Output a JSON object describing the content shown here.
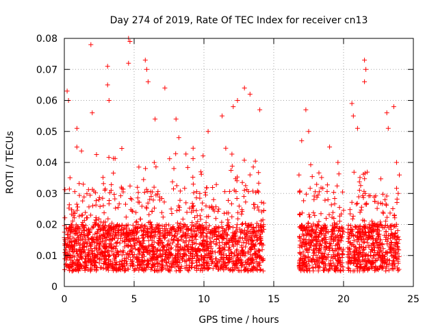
{
  "chart_data": {
    "type": "scatter",
    "title": "Day 274 of 2019, Rate Of TEC Index for receiver cn13",
    "xlabel": "GPS time / hours",
    "ylabel": "ROTI / TECUs",
    "xlim": [
      0,
      25
    ],
    "ylim": [
      0,
      0.08
    ],
    "xticks": [
      0,
      5,
      10,
      15,
      20,
      25
    ],
    "yticks": [
      0,
      0.01,
      0.02,
      0.03,
      0.04,
      0.05,
      0.06,
      0.07,
      0.08
    ],
    "xtick_labels": [
      "0",
      "5",
      "10",
      "15",
      "20",
      "25"
    ],
    "ytick_labels": [
      "0",
      "0.01",
      "0.02",
      "0.03",
      "0.04",
      "0.05",
      "0.06",
      "0.07",
      "0.08"
    ],
    "grid": true,
    "marker": "+",
    "series": [
      {
        "name": "cn13",
        "color": "#ff0000",
        "segments": [
          {
            "x_start": 0.0,
            "x_end": 14.3,
            "base": [
              0.005,
              0.02
            ],
            "spread_to": 0.045
          },
          {
            "x_start": 16.8,
            "x_end": 20.0,
            "base": [
              0.005,
              0.02
            ],
            "spread_to": 0.04
          },
          {
            "x_start": 20.3,
            "x_end": 24.0,
            "base": [
              0.005,
              0.02
            ],
            "spread_to": 0.04
          }
        ],
        "notable_points": [
          {
            "x": 0.2,
            "y": 0.063
          },
          {
            "x": 0.3,
            "y": 0.06
          },
          {
            "x": 0.9,
            "y": 0.051
          },
          {
            "x": 1.9,
            "y": 0.078
          },
          {
            "x": 2.0,
            "y": 0.056
          },
          {
            "x": 3.1,
            "y": 0.065
          },
          {
            "x": 3.1,
            "y": 0.071
          },
          {
            "x": 3.2,
            "y": 0.06
          },
          {
            "x": 4.6,
            "y": 0.08
          },
          {
            "x": 4.7,
            "y": 0.079
          },
          {
            "x": 4.6,
            "y": 0.072
          },
          {
            "x": 5.8,
            "y": 0.073
          },
          {
            "x": 5.9,
            "y": 0.07
          },
          {
            "x": 6.0,
            "y": 0.066
          },
          {
            "x": 6.5,
            "y": 0.054
          },
          {
            "x": 7.2,
            "y": 0.064
          },
          {
            "x": 8.0,
            "y": 0.054
          },
          {
            "x": 8.2,
            "y": 0.048
          },
          {
            "x": 10.3,
            "y": 0.05
          },
          {
            "x": 11.3,
            "y": 0.055
          },
          {
            "x": 12.1,
            "y": 0.058
          },
          {
            "x": 12.4,
            "y": 0.06
          },
          {
            "x": 12.9,
            "y": 0.064
          },
          {
            "x": 13.3,
            "y": 0.062
          },
          {
            "x": 14.0,
            "y": 0.057
          },
          {
            "x": 17.0,
            "y": 0.047
          },
          {
            "x": 17.3,
            "y": 0.057
          },
          {
            "x": 17.5,
            "y": 0.05
          },
          {
            "x": 19.0,
            "y": 0.045
          },
          {
            "x": 19.6,
            "y": 0.04
          },
          {
            "x": 20.6,
            "y": 0.059
          },
          {
            "x": 20.7,
            "y": 0.055
          },
          {
            "x": 21.0,
            "y": 0.051
          },
          {
            "x": 21.5,
            "y": 0.073
          },
          {
            "x": 21.6,
            "y": 0.07
          },
          {
            "x": 21.5,
            "y": 0.066
          },
          {
            "x": 23.1,
            "y": 0.056
          },
          {
            "x": 23.2,
            "y": 0.051
          },
          {
            "x": 23.6,
            "y": 0.058
          },
          {
            "x": 23.8,
            "y": 0.04
          }
        ]
      }
    ]
  }
}
